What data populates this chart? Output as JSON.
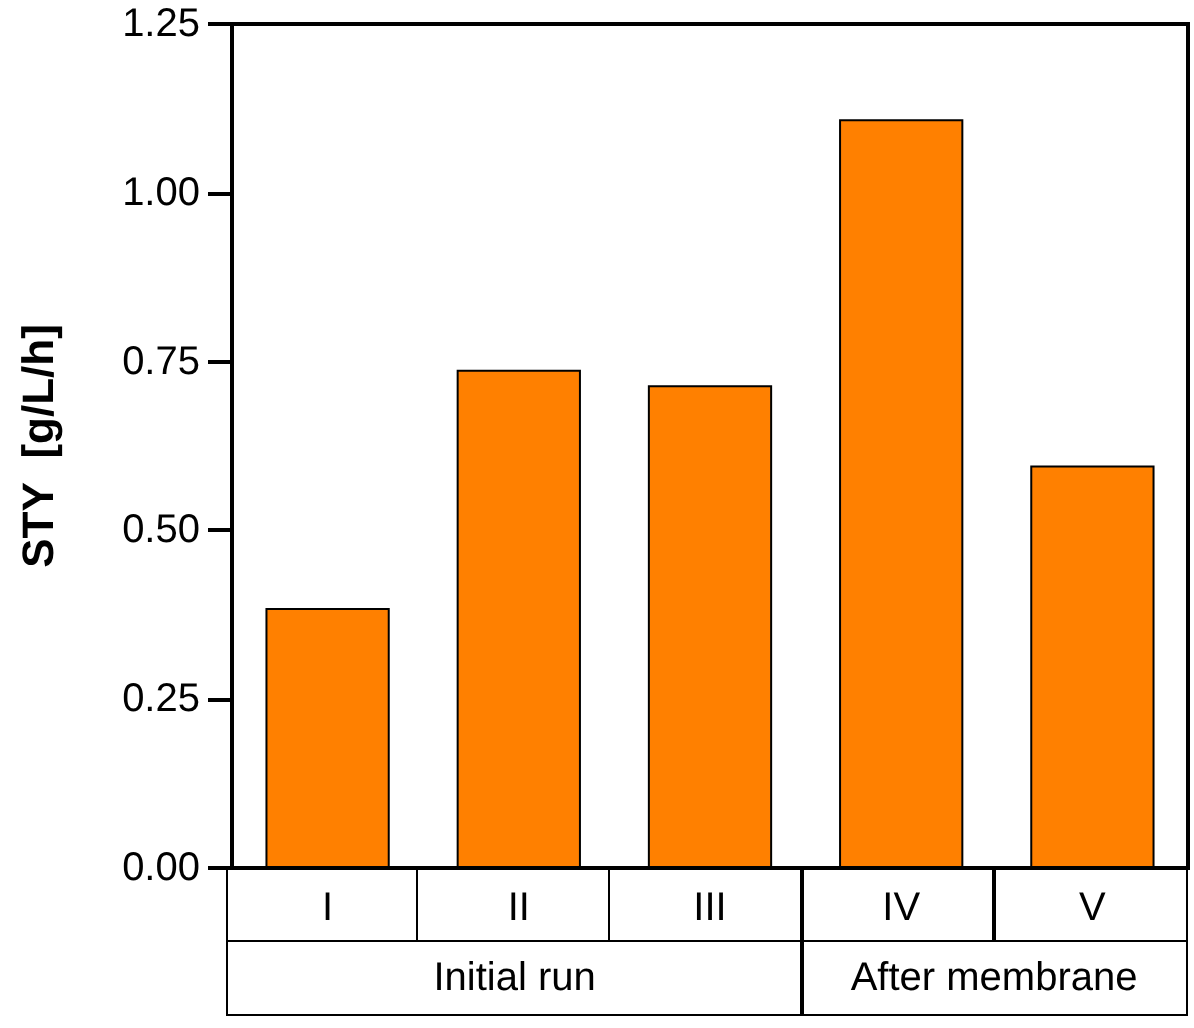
{
  "chart_data": {
    "type": "bar",
    "ylabel": "STY  [g/L/h]",
    "categories": [
      "I",
      "II",
      "III",
      "IV",
      "V"
    ],
    "values": [
      0.385,
      0.738,
      0.715,
      1.109,
      0.596
    ],
    "color": "#ff8000",
    "ylim": [
      0,
      1.25
    ],
    "yticks": [
      {
        "value": 0,
        "label": "0.00"
      },
      {
        "value": 0.25,
        "label": "0.25"
      },
      {
        "value": 0.5,
        "label": "0.50"
      },
      {
        "value": 0.75,
        "label": "0.75"
      },
      {
        "value": 1,
        "label": "1.00"
      },
      {
        "value": 1.25,
        "label": "1.25"
      }
    ],
    "annotations": [
      "Initial run",
      "After membrane"
    ],
    "grid": false
  }
}
